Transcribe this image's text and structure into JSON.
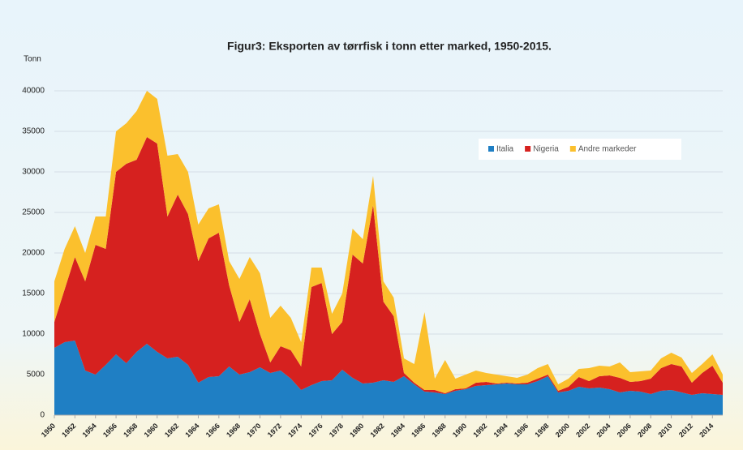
{
  "chart_data": {
    "type": "stacked_area",
    "title": "Figur3: Eksporten av tørrfisk i tonn etter marked, 1950-2015.",
    "y_label": "Tonn",
    "x": [
      1950,
      1951,
      1952,
      1953,
      1954,
      1955,
      1956,
      1957,
      1958,
      1959,
      1960,
      1961,
      1962,
      1963,
      1964,
      1965,
      1966,
      1967,
      1968,
      1969,
      1970,
      1971,
      1972,
      1973,
      1974,
      1975,
      1976,
      1977,
      1978,
      1979,
      1980,
      1981,
      1982,
      1983,
      1984,
      1985,
      1986,
      1987,
      1988,
      1989,
      1990,
      1991,
      1992,
      1993,
      1994,
      1995,
      1996,
      1997,
      1998,
      1999,
      2000,
      2001,
      2002,
      2003,
      2004,
      2005,
      2006,
      2007,
      2008,
      2009,
      2010,
      2011,
      2012,
      2013,
      2014,
      2015
    ],
    "series": [
      {
        "name": "Italia",
        "color": "#1f7fc4",
        "values": [
          8300,
          9000,
          9200,
          5500,
          5000,
          6200,
          7500,
          6400,
          7800,
          8800,
          7800,
          7000,
          7200,
          6200,
          4000,
          4700,
          4800,
          6000,
          5000,
          5300,
          5900,
          5200,
          5500,
          4500,
          3100,
          3700,
          4200,
          4300,
          5600,
          4600,
          3900,
          4000,
          4300,
          4100,
          4800,
          3800,
          2900,
          2800,
          2600,
          3000,
          3200,
          3600,
          3700,
          3800,
          3900,
          3800,
          3800,
          4200,
          4800,
          2800,
          3000,
          3500,
          3300,
          3400,
          3200,
          2800,
          3000,
          2900,
          2600,
          3000,
          3100,
          2800,
          2500,
          2700,
          2600,
          2500
        ]
      },
      {
        "name": "Nigeria",
        "color": "#d6211f",
        "values": [
          3200,
          6500,
          10300,
          11000,
          16000,
          14300,
          22500,
          24600,
          23700,
          25500,
          25700,
          17500,
          20000,
          18600,
          15000,
          17100,
          17700,
          10000,
          6500,
          9000,
          4100,
          1300,
          3000,
          3500,
          2900,
          12100,
          12100,
          5700,
          5900,
          15200,
          14800,
          21900,
          9700,
          8100,
          400,
          200,
          200,
          300,
          100,
          200,
          100,
          400,
          400,
          100,
          100,
          100,
          200,
          300,
          200,
          200,
          500,
          1200,
          900,
          1400,
          1700,
          1800,
          1100,
          1300,
          1900,
          2800,
          3200,
          3200,
          1500,
          2500,
          3500,
          1500
        ]
      },
      {
        "name": "Andre markeder",
        "color": "#fbc02d",
        "values": [
          5000,
          5000,
          3800,
          3500,
          3500,
          4000,
          5000,
          5000,
          6000,
          5700,
          5500,
          7500,
          5000,
          5200,
          4500,
          3700,
          3500,
          3000,
          5300,
          5200,
          7500,
          5500,
          5000,
          4000,
          3000,
          2400,
          1900,
          2500,
          3500,
          3200,
          3000,
          3600,
          2500,
          2300,
          1800,
          2300,
          9600,
          1400,
          4100,
          1300,
          1700,
          1500,
          1100,
          1100,
          800,
          700,
          1000,
          1300,
          1300,
          800,
          1000,
          1000,
          1600,
          1300,
          1100,
          1900,
          1200,
          1200,
          1000,
          1200,
          1400,
          1100,
          1200,
          1100,
          1400,
          1000
        ]
      }
    ],
    "xlim": [
      1950,
      2015
    ],
    "xticks": [
      1950,
      1952,
      1954,
      1956,
      1958,
      1960,
      1962,
      1964,
      1966,
      1968,
      1970,
      1972,
      1974,
      1976,
      1978,
      1980,
      1982,
      1984,
      1986,
      1988,
      1990,
      1992,
      1994,
      1996,
      1998,
      2000,
      2002,
      2004,
      2006,
      2008,
      2010,
      2012,
      2014
    ],
    "ylim": [
      0,
      40000
    ],
    "yticks": [
      0,
      5000,
      10000,
      15000,
      20000,
      25000,
      30000,
      35000,
      40000
    ],
    "grid": true
  }
}
